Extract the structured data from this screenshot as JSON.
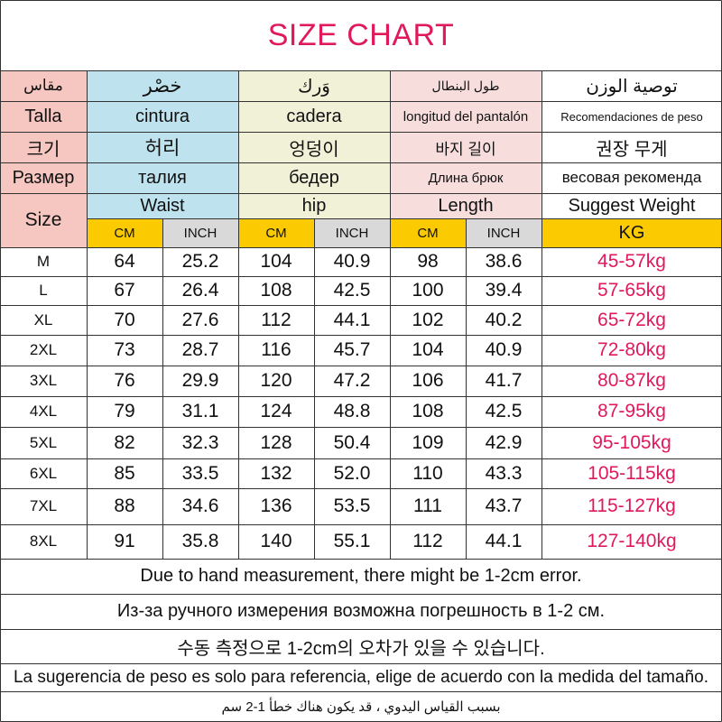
{
  "title": "SIZE CHART",
  "header_rows": [
    [
      "مقاس",
      "خصْر",
      "وَرك",
      "طول البنطال",
      "توصية الوزن"
    ],
    [
      "Talla",
      "cintura",
      "cadera",
      "longitud del pantalón",
      "Recomendaciones de peso"
    ],
    [
      "크기",
      "허리",
      "엉덩이",
      "바지 길이",
      "권장 무게"
    ],
    [
      "Размер",
      "талия",
      "бедер",
      "Длина брюк",
      "весовая рекомендa"
    ]
  ],
  "english_header": {
    "size": "Size",
    "waist": "Waist",
    "hip": "hip",
    "length": "Length",
    "suggest_weight": "Suggest Weight"
  },
  "units": [
    "CM",
    "INCH",
    "CM",
    "INCH",
    "CM",
    "INCH",
    "KG"
  ],
  "rows": [
    [
      "M",
      "64",
      "25.2",
      "104",
      "40.9",
      "98",
      "38.6",
      "45-57kg"
    ],
    [
      "L",
      "67",
      "26.4",
      "108",
      "42.5",
      "100",
      "39.4",
      "57-65kg"
    ],
    [
      "XL",
      "70",
      "27.6",
      "112",
      "44.1",
      "102",
      "40.2",
      "65-72kg"
    ],
    [
      "2XL",
      "73",
      "28.7",
      "116",
      "45.7",
      "104",
      "40.9",
      "72-80kg"
    ],
    [
      "3XL",
      "76",
      "29.9",
      "120",
      "47.2",
      "106",
      "41.7",
      "80-87kg"
    ],
    [
      "4XL",
      "79",
      "31.1",
      "124",
      "48.8",
      "108",
      "42.5",
      "87-95kg"
    ],
    [
      "5XL",
      "82",
      "32.3",
      "128",
      "50.4",
      "109",
      "42.9",
      "95-105kg"
    ],
    [
      "6XL",
      "85",
      "33.5",
      "132",
      "52.0",
      "110",
      "43.3",
      "105-115kg"
    ],
    [
      "7XL",
      "88",
      "34.6",
      "136",
      "53.5",
      "111",
      "43.7",
      "115-127kg"
    ],
    [
      "8XL",
      "91",
      "35.8",
      "140",
      "55.1",
      "112",
      "44.1",
      "127-140kg"
    ]
  ],
  "notes": [
    "Due to hand measurement, there might be 1-2cm error.",
    "Из-за ручного измерения возможна погрешность в 1-2 см.",
    "수동 측정으로 1-2cm의 오차가 있을 수 있습니다.",
    "La sugerencia de peso es solo para referencia, elige de acuerdo con la medida del tamaño.",
    "بسبب القياس اليدوي ، قد يكون هناك خطأ 1-2 سم"
  ],
  "colors": {
    "accent": "#e0195a",
    "size_col": "#f6c6c0",
    "waist_col": "#bfe3ee",
    "hip_col": "#f1f1d8",
    "length_col": "#f8dddd",
    "cm_unit": "#fbca00",
    "inch_unit": "#d9d9d9"
  }
}
